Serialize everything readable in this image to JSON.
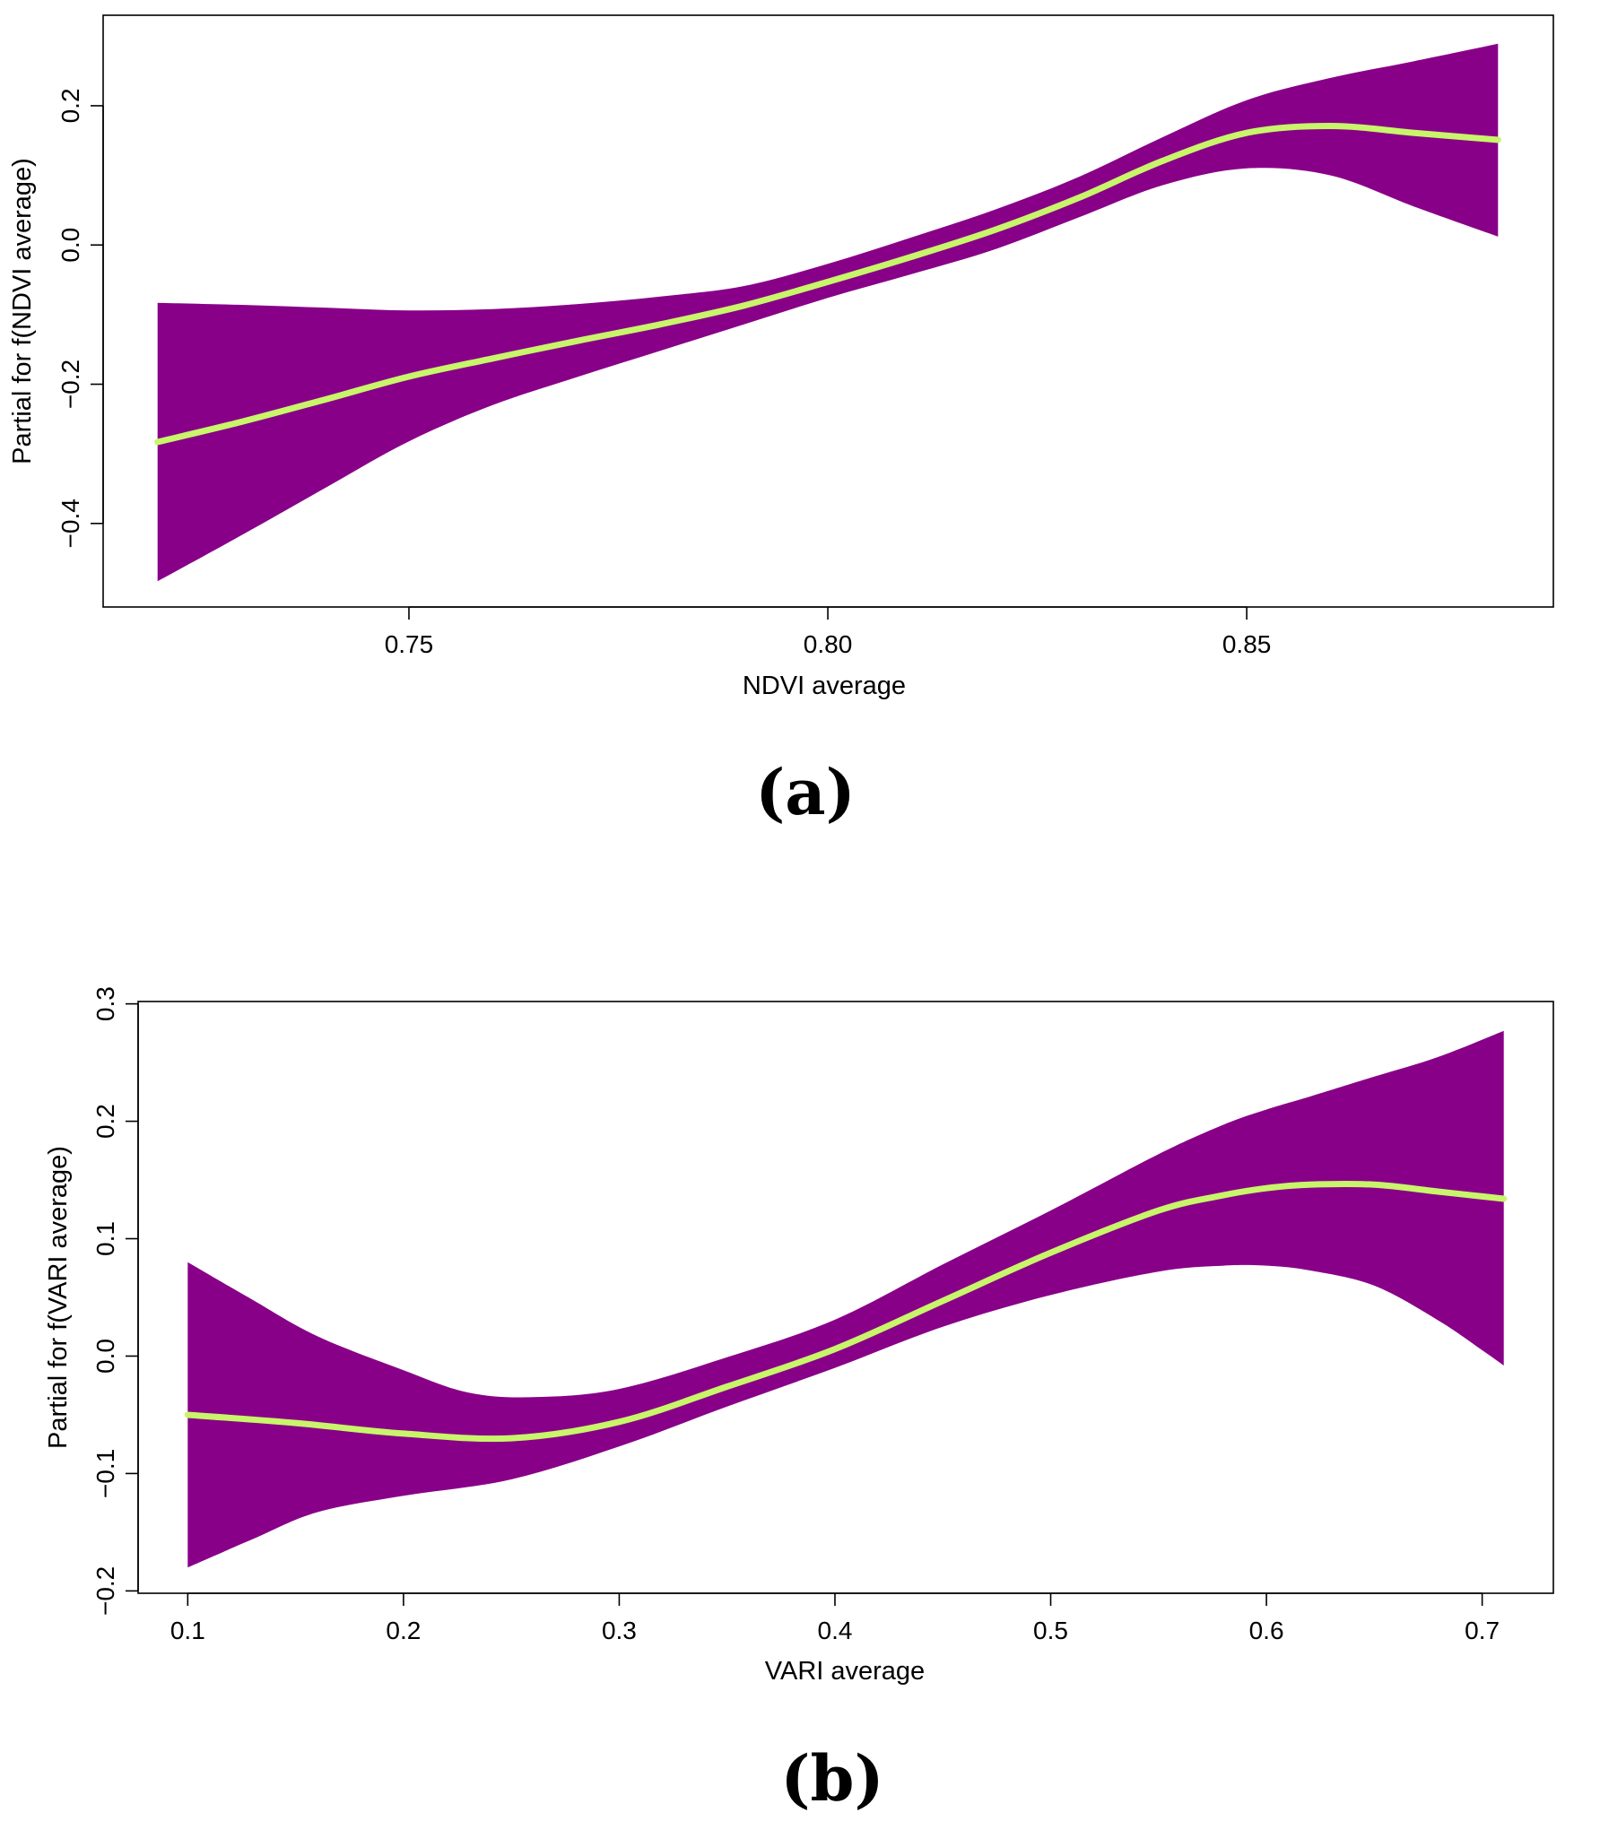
{
  "colors": {
    "band": "#880088",
    "fit": "#c8f56a",
    "axis": "#000000"
  },
  "chart_data": [
    {
      "type": "line",
      "panel_label": "(a)",
      "title": "",
      "xlabel": "NDVI average",
      "ylabel": "Partial for f(NDVI average)",
      "xlim": [
        0.7135,
        0.8866
      ],
      "ylim": [
        -0.52,
        0.33
      ],
      "xticks": [
        0.75,
        0.8,
        0.85
      ],
      "xtick_labels": [
        "0.75",
        "0.80",
        "0.85"
      ],
      "yticks": [
        -0.4,
        -0.2,
        0.0,
        0.2
      ],
      "ytick_labels": [
        "−0.4",
        "−0.2",
        "0.0",
        "0.2"
      ],
      "series": [
        {
          "name": "fit",
          "x": [
            0.72,
            0.73,
            0.74,
            0.75,
            0.76,
            0.77,
            0.78,
            0.79,
            0.8,
            0.81,
            0.82,
            0.83,
            0.84,
            0.85,
            0.86,
            0.87,
            0.88
          ],
          "y": [
            -0.283,
            -0.254,
            -0.222,
            -0.189,
            -0.163,
            -0.138,
            -0.114,
            -0.087,
            -0.053,
            -0.017,
            0.022,
            0.068,
            0.121,
            0.161,
            0.171,
            0.161,
            0.151
          ]
        },
        {
          "name": "upper",
          "x": [
            0.72,
            0.73,
            0.74,
            0.75,
            0.76,
            0.77,
            0.78,
            0.79,
            0.8,
            0.81,
            0.82,
            0.83,
            0.84,
            0.85,
            0.86,
            0.87,
            0.88
          ],
          "y": [
            -0.083,
            -0.086,
            -0.09,
            -0.094,
            -0.092,
            -0.085,
            -0.074,
            -0.059,
            -0.027,
            0.011,
            0.051,
            0.098,
            0.155,
            0.208,
            0.24,
            0.264,
            0.289
          ]
        },
        {
          "name": "lower",
          "x": [
            0.72,
            0.73,
            0.74,
            0.75,
            0.76,
            0.77,
            0.78,
            0.79,
            0.8,
            0.81,
            0.82,
            0.83,
            0.84,
            0.85,
            0.86,
            0.87,
            0.88
          ],
          "y": [
            -0.483,
            -0.417,
            -0.349,
            -0.282,
            -0.23,
            -0.19,
            -0.152,
            -0.114,
            -0.076,
            -0.042,
            -0.006,
            0.04,
            0.086,
            0.11,
            0.1,
            0.055,
            0.012
          ]
        }
      ]
    },
    {
      "type": "line",
      "panel_label": "(b)",
      "title": "",
      "xlabel": "VARI average",
      "ylabel": "Partial for f(VARI average)",
      "xlim": [
        0.077,
        0.733
      ],
      "ylim": [
        -0.202,
        0.302
      ],
      "xticks": [
        0.1,
        0.2,
        0.3,
        0.4,
        0.5,
        0.6,
        0.7
      ],
      "xtick_labels": [
        "0.1",
        "0.2",
        "0.3",
        "0.4",
        "0.5",
        "0.6",
        "0.7"
      ],
      "yticks": [
        -0.2,
        -0.1,
        0.0,
        0.1,
        0.2,
        0.3
      ],
      "ytick_labels": [
        "−0.2",
        "−0.1",
        "0.0",
        "0.1",
        "0.2",
        "0.3"
      ],
      "series": [
        {
          "name": "fit",
          "x": [
            0.1,
            0.15,
            0.2,
            0.25,
            0.3,
            0.35,
            0.4,
            0.45,
            0.5,
            0.55,
            0.58,
            0.6,
            0.62,
            0.65,
            0.68,
            0.71
          ],
          "y": [
            -0.05,
            -0.057,
            -0.066,
            -0.07,
            -0.056,
            -0.026,
            0.006,
            0.047,
            0.088,
            0.124,
            0.137,
            0.143,
            0.146,
            0.146,
            0.14,
            0.134
          ]
        },
        {
          "name": "upper",
          "x": [
            0.1,
            0.13,
            0.16,
            0.2,
            0.23,
            0.26,
            0.3,
            0.35,
            0.4,
            0.45,
            0.5,
            0.55,
            0.58,
            0.6,
            0.62,
            0.65,
            0.68,
            0.71
          ],
          "y": [
            0.08,
            0.048,
            0.017,
            -0.012,
            -0.031,
            -0.035,
            -0.028,
            -0.001,
            0.031,
            0.078,
            0.124,
            0.172,
            0.197,
            0.21,
            0.221,
            0.238,
            0.255,
            0.277
          ]
        },
        {
          "name": "lower",
          "x": [
            0.1,
            0.13,
            0.16,
            0.2,
            0.25,
            0.3,
            0.35,
            0.4,
            0.45,
            0.5,
            0.55,
            0.58,
            0.6,
            0.62,
            0.65,
            0.68,
            0.7,
            0.71
          ],
          "y": [
            -0.18,
            -0.156,
            -0.133,
            -0.119,
            -0.105,
            -0.077,
            -0.043,
            -0.01,
            0.025,
            0.052,
            0.072,
            0.077,
            0.077,
            0.073,
            0.06,
            0.03,
            0.005,
            -0.008
          ]
        }
      ]
    }
  ]
}
